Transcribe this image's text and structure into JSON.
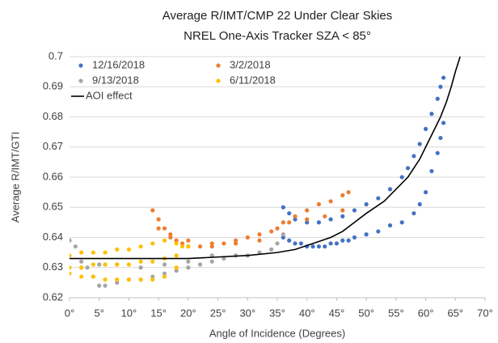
{
  "chart_data": {
    "type": "scatter",
    "title": "Average R/IMT/CMP 22 Under Clear Skies",
    "subtitle": "NREL One-Axis Tracker SZA < 85°",
    "x_label": "Angle of Incidence (Degrees)",
    "y_label": "Average R/IMT/GTI",
    "xlim": [
      0,
      70
    ],
    "xticks": [
      {
        "value": 0,
        "label": "0°"
      },
      {
        "value": 5,
        "label": "5°"
      },
      {
        "value": 10,
        "label": "10°"
      },
      {
        "value": 15,
        "label": "15°"
      },
      {
        "value": 20,
        "label": "20°"
      },
      {
        "value": 25,
        "label": "25°"
      },
      {
        "value": 30,
        "label": "30°"
      },
      {
        "value": 35,
        "label": "35°"
      },
      {
        "value": 40,
        "label": "40°"
      },
      {
        "value": 45,
        "label": "45°"
      },
      {
        "value": 50,
        "label": "50°"
      },
      {
        "value": 55,
        "label": "55°"
      },
      {
        "value": 60,
        "label": "60°"
      },
      {
        "value": 65,
        "label": "65°"
      },
      {
        "value": 70,
        "label": "70°"
      }
    ],
    "ylim": [
      0.62,
      0.7
    ],
    "yticks": [
      0.62,
      0.63,
      0.64,
      0.65,
      0.66,
      0.67,
      0.68,
      0.69,
      0.7
    ],
    "grid": true,
    "legend": "upper left",
    "series": [
      {
        "name": "12/16/2018",
        "color": "#4472c4",
        "style": "markers",
        "x": [
          36,
          37,
          38,
          39,
          40,
          41,
          42,
          43,
          44,
          45,
          46,
          47,
          48,
          50,
          52,
          54,
          56,
          58,
          59,
          60,
          61,
          62,
          62.5,
          63,
          36,
          37,
          38,
          40,
          42,
          44,
          46,
          48,
          50,
          52,
          54,
          56,
          57,
          58,
          59,
          60,
          61,
          62,
          62.5,
          63
        ],
        "values": [
          0.64,
          0.639,
          0.638,
          0.638,
          0.637,
          0.637,
          0.637,
          0.637,
          0.638,
          0.638,
          0.639,
          0.639,
          0.64,
          0.641,
          0.642,
          0.644,
          0.645,
          0.648,
          0.651,
          0.655,
          0.662,
          0.668,
          0.673,
          0.678,
          0.65,
          0.648,
          0.646,
          0.645,
          0.645,
          0.646,
          0.647,
          0.649,
          0.651,
          0.653,
          0.656,
          0.66,
          0.663,
          0.667,
          0.671,
          0.676,
          0.681,
          0.686,
          0.69,
          0.693
        ]
      },
      {
        "name": "3/2/2018",
        "color": "#ed7d31",
        "style": "markers",
        "x": [
          14,
          15,
          16,
          17,
          18,
          19,
          20,
          22,
          24,
          26,
          28,
          30,
          32,
          34,
          36,
          38,
          40,
          42,
          44,
          46,
          47,
          15,
          17,
          20,
          24,
          28,
          32,
          35,
          37,
          40,
          43,
          46
        ],
        "values": [
          0.649,
          0.646,
          0.643,
          0.641,
          0.639,
          0.638,
          0.637,
          0.637,
          0.637,
          0.638,
          0.639,
          0.64,
          0.641,
          0.642,
          0.645,
          0.647,
          0.649,
          0.651,
          0.652,
          0.654,
          0.655,
          0.643,
          0.64,
          0.639,
          0.638,
          0.638,
          0.639,
          0.643,
          0.645,
          0.646,
          0.647,
          0.649
        ]
      },
      {
        "name": "9/13/2018",
        "color": "#a5a5a5",
        "style": "markers",
        "x": [
          0,
          1,
          2,
          3,
          4,
          5,
          6,
          8,
          10,
          12,
          14,
          16,
          18,
          20,
          22,
          24,
          26,
          28,
          30,
          32,
          34,
          35,
          36,
          2,
          5,
          8,
          12,
          16,
          20,
          24
        ],
        "values": [
          0.639,
          0.637,
          0.632,
          0.63,
          0.627,
          0.624,
          0.624,
          0.625,
          0.626,
          0.626,
          0.627,
          0.628,
          0.629,
          0.63,
          0.631,
          0.632,
          0.633,
          0.634,
          0.634,
          0.635,
          0.636,
          0.638,
          0.641,
          0.63,
          0.631,
          0.631,
          0.63,
          0.631,
          0.632,
          0.634
        ]
      },
      {
        "name": "6/11/2018",
        "color": "#ffc000",
        "style": "markers",
        "x": [
          0,
          2,
          4,
          6,
          8,
          10,
          12,
          14,
          16,
          18,
          19,
          20,
          0,
          2,
          4,
          6,
          8,
          10,
          12,
          14,
          16,
          18,
          0,
          2,
          4,
          6,
          8,
          10,
          12,
          14,
          16,
          18
        ],
        "values": [
          0.634,
          0.635,
          0.635,
          0.635,
          0.636,
          0.636,
          0.637,
          0.638,
          0.639,
          0.638,
          0.637,
          0.637,
          0.63,
          0.63,
          0.631,
          0.631,
          0.631,
          0.631,
          0.632,
          0.632,
          0.633,
          0.634,
          0.628,
          0.627,
          0.627,
          0.626,
          0.626,
          0.626,
          0.626,
          0.626,
          0.627,
          0.63
        ]
      },
      {
        "name": "AOI effect",
        "color": "#000000",
        "style": "line",
        "x": [
          0,
          10,
          20,
          30,
          35,
          38,
          41,
          44,
          46,
          48,
          50,
          53,
          55,
          57,
          59,
          60,
          61,
          62.5,
          63.5,
          64.3,
          65,
          65.8
        ],
        "values": [
          0.633,
          0.633,
          0.633,
          0.634,
          0.635,
          0.636,
          0.638,
          0.64,
          0.642,
          0.645,
          0.648,
          0.652,
          0.656,
          0.66,
          0.666,
          0.67,
          0.674,
          0.68,
          0.685,
          0.69,
          0.695,
          0.7
        ]
      }
    ]
  }
}
